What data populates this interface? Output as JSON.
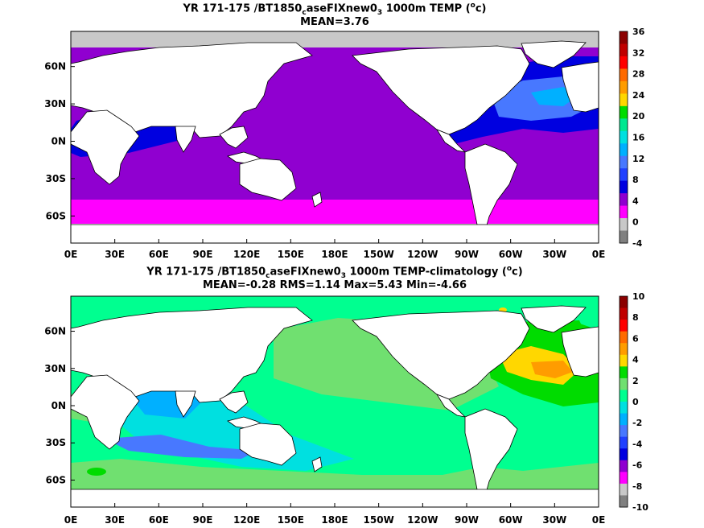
{
  "panel1": {
    "title_pre": "YR 171-175 /BT1850",
    "title_sub1": "c",
    "title_mid": "aseFIXnew0",
    "title_sub2": "3",
    "title_post": " 1000m TEMP (",
    "title_sup": "o",
    "title_end": "c)",
    "stats": "MEAN=3.76",
    "colorbar_ticks": [
      "36",
      "32",
      "28",
      "24",
      "20",
      "16",
      "12",
      "8",
      "4",
      "0",
      "-4"
    ],
    "colorbar_colors": [
      "#8b0000",
      "#c00000",
      "#ff0000",
      "#ff6a00",
      "#ff9c00",
      "#ffd700",
      "#00dc00",
      "#00e890",
      "#00e0e0",
      "#00b0ff",
      "#4878ff",
      "#2040ff",
      "#0000e0",
      "#9000d0",
      "#ff00ff",
      "#c8c8c8",
      "#808080"
    ]
  },
  "panel2": {
    "title_pre": "YR 171-175 /BT1850",
    "title_sub1": "c",
    "title_mid": "aseFIXnew0",
    "title_sub2": "3",
    "title_post": " 1000m TEMP-climatology (",
    "title_sup": "o",
    "title_end": "c)",
    "stats": "MEAN=-0.28   RMS=1.14   Max=5.43   Min=-4.66",
    "colorbar_ticks": [
      "10",
      "8",
      "6",
      "4",
      "2",
      "0",
      "-2",
      "-4",
      "-6",
      "-8",
      "-10"
    ],
    "colorbar_colors": [
      "#8b0000",
      "#c00000",
      "#ff0000",
      "#ff6a00",
      "#ff9c00",
      "#ffd700",
      "#00dc00",
      "#70e070",
      "#00ff90",
      "#00e0e0",
      "#00b0ff",
      "#4878ff",
      "#2040ff",
      "#0000e0",
      "#9000d0",
      "#ff00ff",
      "#c8c8c8",
      "#808080"
    ]
  },
  "x_ticks": [
    "0E",
    "30E",
    "60E",
    "90E",
    "120E",
    "150E",
    "180E",
    "150W",
    "120W",
    "90W",
    "60W",
    "30W",
    "0E"
  ],
  "y_ticks": [
    "60N",
    "30N",
    "0N",
    "30S",
    "60S"
  ]
}
